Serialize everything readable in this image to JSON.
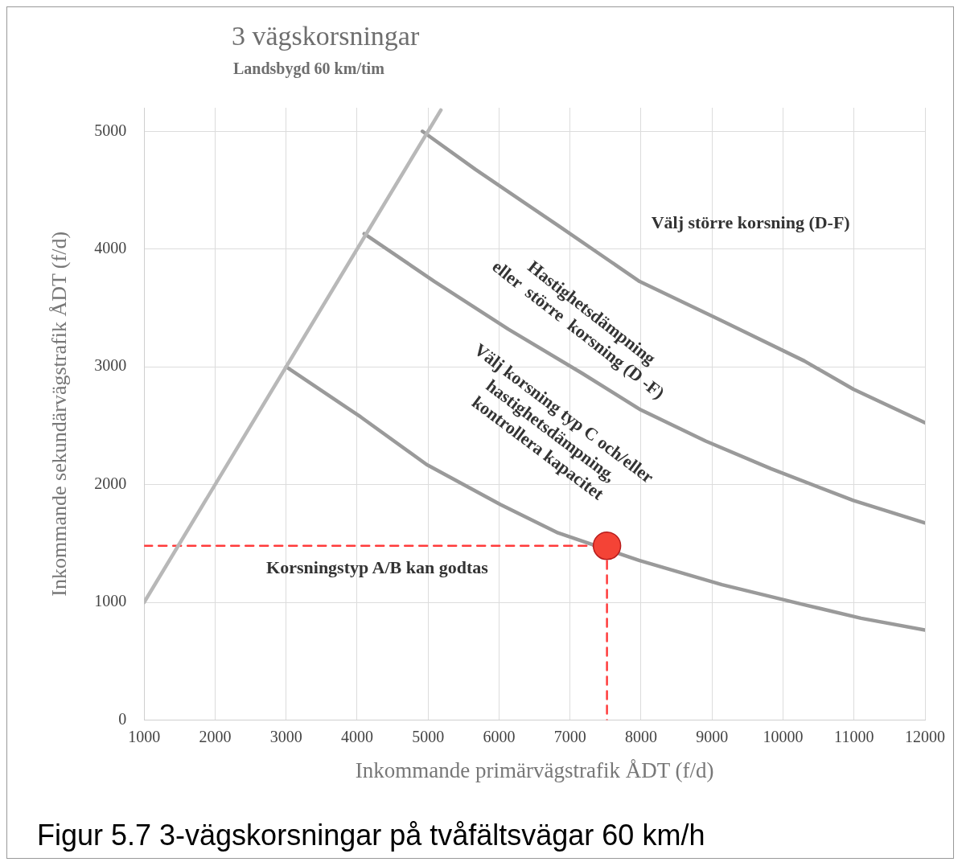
{
  "chart_data": {
    "type": "line",
    "title": "3 vägskorsningar",
    "subtitle": "Landsbygd 60 km/tim",
    "xlabel": "Inkommande primärvägstrafik ÅDT (f/d)",
    "ylabel": "Inkommande sekundärvägstrafik ÅDT (f/d)",
    "xlim": [
      1000,
      12000
    ],
    "ylim": [
      0,
      5200
    ],
    "xticks": [
      1000,
      2000,
      3000,
      4000,
      5000,
      6000,
      7000,
      8000,
      9000,
      10000,
      11000,
      12000
    ],
    "yticks": [
      0,
      1000,
      2000,
      3000,
      4000,
      5000
    ],
    "grid": true,
    "legend": false,
    "series": [
      {
        "color": "#b8b8b8",
        "x": [
          1000,
          5180
        ],
        "values": [
          1000,
          5180
        ]
      },
      {
        "color": "#9a9a9a",
        "x": [
          3000,
          4050,
          4980,
          6020,
          6830,
          7980,
          9140,
          10300,
          11100,
          12000
        ],
        "values": [
          3000,
          2575,
          2170,
          1830,
          1590,
          1355,
          1150,
          980,
          865,
          765
        ]
      },
      {
        "color": "#9a9a9a",
        "x": [
          4100,
          5090,
          6130,
          7170,
          7980,
          8910,
          9830,
          10990,
          12000
        ],
        "values": [
          4130,
          3725,
          3320,
          2945,
          2640,
          2370,
          2135,
          1865,
          1675
        ]
      },
      {
        "color": "#9a9a9a",
        "x": [
          4920,
          5670,
          6830,
          7980,
          9140,
          10300,
          10990,
          12000
        ],
        "values": [
          5000,
          4675,
          4200,
          3725,
          3390,
          3050,
          2810,
          2525
        ]
      },
      {
        "color": "#ff3b3b",
        "line_style": "dashed",
        "x": [
          1000,
          7520,
          7520
        ],
        "values": [
          1480,
          1480,
          0
        ]
      },
      {
        "type": "scatter",
        "color": "#f44336",
        "marker": "circle",
        "x": [
          7520
        ],
        "values": [
          1480
        ]
      }
    ],
    "annotations": [
      "Välj större korsning (D-F)",
      "Hastighetsdämpning\neller  större  korsning (D -F)",
      "Välj korsning typ C och/eller\nhastighetsdämpning,\nkontrollera kapacitet",
      "Korsningstyp A/B kan godtas",
      "Figur 5.7 3-vägskorsningar på tvåfältsvägar 60 km/h"
    ]
  }
}
